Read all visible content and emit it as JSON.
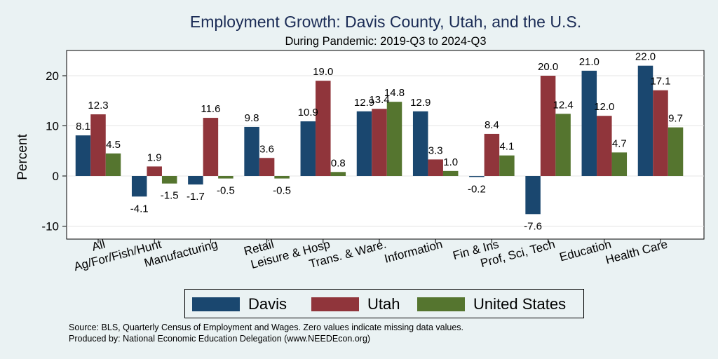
{
  "chart_data": {
    "type": "bar",
    "title": "Employment Growth: Davis County, Utah, and the U.S.",
    "subtitle": "During Pandemic: 2019-Q3 to 2024-Q3",
    "xlabel": "",
    "ylabel": "Percent",
    "ylim": [
      -13,
      25
    ],
    "yticks": [
      -10,
      0,
      10,
      20
    ],
    "grid": true,
    "legend_position": "bottom",
    "categories": [
      "All",
      "Ag/For/Fish/Hunt",
      "Manufacturing",
      "Retail",
      "Leisure & Hosp",
      "Trans. & Ware.",
      "Information",
      "Fin & Ins",
      "Prof, Sci, Tech",
      "Education",
      "Health Care"
    ],
    "series": [
      {
        "name": "Davis",
        "color": "#1a476f",
        "values": [
          8.1,
          -4.1,
          -1.7,
          9.8,
          10.9,
          12.9,
          12.9,
          -0.2,
          -7.6,
          21.0,
          22.0
        ],
        "labels": [
          "8.1",
          "-4.1",
          "-1.7",
          "9.8",
          "10.9",
          "12.9",
          "12.9",
          "-0.2",
          "-7.6",
          "21.0",
          "22.0"
        ]
      },
      {
        "name": "Utah",
        "color": "#90353b",
        "values": [
          12.3,
          1.9,
          11.6,
          3.6,
          19.0,
          13.4,
          3.3,
          8.4,
          20.0,
          12.0,
          17.1
        ],
        "labels": [
          "12.3",
          "1.9",
          "11.6",
          "3.6",
          "19.0",
          "13.4",
          "3.3",
          "8.4",
          "20.0",
          "12.0",
          "17.1"
        ]
      },
      {
        "name": "United States",
        "color": "#55752f",
        "values": [
          4.5,
          -1.5,
          -0.5,
          -0.5,
          0.8,
          14.8,
          1.0,
          4.1,
          12.4,
          4.7,
          9.7
        ],
        "labels": [
          "4.5",
          "-1.5",
          "-0.5",
          "-0.5",
          "0.8",
          "14.8",
          "1.0",
          "4.1",
          "12.4",
          "4.7",
          "9.7"
        ]
      }
    ]
  },
  "notes": {
    "source": "Source: BLS, Quarterly Census of Employment and Wages. Zero values indicate missing data values.",
    "produced": "Produced by: National Economic Education Delegation (www.NEEDEcon.org)"
  }
}
